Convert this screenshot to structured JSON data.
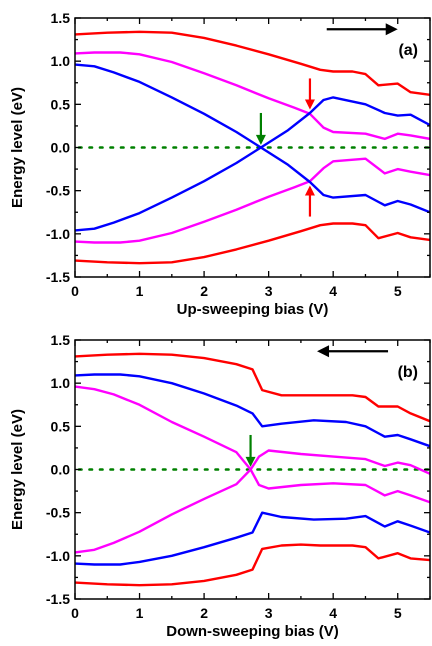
{
  "chart_data": [
    {
      "type": "line",
      "panel_label": "(a)",
      "xlabel": "Up-sweeping bias (V)",
      "ylabel": "Energy level  (eV)",
      "xlim": [
        0,
        5.5
      ],
      "ylim": [
        -1.5,
        1.5
      ],
      "xticks": [
        0,
        1,
        2,
        3,
        4,
        5
      ],
      "yticks": [
        -1.5,
        -1.0,
        -0.5,
        0.0,
        0.5,
        1.0,
        1.5
      ],
      "xtick_labels": [
        "0",
        "1",
        "2",
        "3",
        "4",
        "5"
      ],
      "ytick_labels": [
        "-1.5",
        "-1.0",
        "-0.5",
        "0.0",
        "0.5",
        "1.0",
        "1.5"
      ],
      "grid": false,
      "sweep_arrow": {
        "color": "#000000",
        "direction": "right",
        "x_from": 3.9,
        "x_to": 5.0,
        "y": 1.37
      },
      "zero_line": {
        "y": 0.0,
        "color": "#008000",
        "style": "dotted"
      },
      "markers": [
        {
          "color": "#008000",
          "x": 2.88,
          "y_tip": 0.03,
          "y_tail": 0.4,
          "direction": "down"
        },
        {
          "color": "#ff0000",
          "x": 3.64,
          "y_tip": 0.44,
          "y_tail": 0.8,
          "direction": "down"
        },
        {
          "color": "#ff0000",
          "x": 3.64,
          "y_tip": -0.44,
          "y_tail": -0.8,
          "direction": "up"
        }
      ],
      "series": [
        {
          "color": "#ff0000",
          "x": [
            0,
            0.5,
            1,
            1.5,
            2,
            2.5,
            3,
            3.5,
            3.8,
            4.0,
            4.3,
            4.5,
            4.7,
            5.0,
            5.2,
            5.5
          ],
          "y": [
            1.31,
            1.33,
            1.34,
            1.33,
            1.27,
            1.18,
            1.08,
            0.97,
            0.9,
            0.88,
            0.88,
            0.85,
            0.72,
            0.74,
            0.64,
            0.61
          ]
        },
        {
          "color": "#ff0000",
          "x": [
            0,
            0.5,
            1,
            1.5,
            2,
            2.5,
            3,
            3.5,
            3.8,
            4.0,
            4.3,
            4.5,
            4.7,
            5.0,
            5.2,
            5.5
          ],
          "y": [
            -1.31,
            -1.33,
            -1.34,
            -1.33,
            -1.27,
            -1.18,
            -1.08,
            -0.97,
            -0.9,
            -0.88,
            -0.88,
            -0.9,
            -1.05,
            -0.99,
            -1.04,
            -1.07
          ]
        },
        {
          "color": "#ff00ff",
          "x": [
            0,
            0.3,
            0.7,
            1.0,
            1.5,
            2.0,
            2.5,
            3.0,
            3.4,
            3.64,
            3.85,
            4.0,
            4.5,
            4.8,
            5.0,
            5.2,
            5.5
          ],
          "y": [
            1.09,
            1.1,
            1.1,
            1.08,
            0.99,
            0.86,
            0.72,
            0.57,
            0.46,
            0.39,
            0.23,
            0.18,
            0.16,
            0.1,
            0.16,
            0.14,
            0.1
          ]
        },
        {
          "color": "#ff00ff",
          "x": [
            0,
            0.3,
            0.7,
            1.0,
            1.5,
            2.0,
            2.5,
            3.0,
            3.4,
            3.64,
            3.85,
            4.0,
            4.5,
            4.8,
            5.0,
            5.2,
            5.5
          ],
          "y": [
            -1.09,
            -1.1,
            -1.1,
            -1.08,
            -0.99,
            -0.86,
            -0.72,
            -0.57,
            -0.46,
            -0.39,
            -0.24,
            -0.16,
            -0.13,
            -0.3,
            -0.25,
            -0.28,
            -0.32
          ]
        },
        {
          "color": "#0000ff",
          "x": [
            0,
            0.3,
            0.6,
            1.0,
            1.5,
            2.0,
            2.5,
            2.88,
            3.3,
            3.64,
            3.85,
            4.0,
            4.5,
            4.8,
            5.0,
            5.2,
            5.5
          ],
          "y": [
            0.96,
            0.94,
            0.87,
            0.76,
            0.58,
            0.39,
            0.18,
            0.0,
            0.2,
            0.4,
            0.55,
            0.58,
            0.5,
            0.4,
            0.37,
            0.38,
            0.26
          ]
        },
        {
          "color": "#0000ff",
          "x": [
            0,
            0.3,
            0.6,
            1.0,
            1.5,
            2.0,
            2.5,
            2.88,
            3.3,
            3.64,
            3.85,
            4.0,
            4.5,
            4.8,
            5.0,
            5.2,
            5.5
          ],
          "y": [
            -0.96,
            -0.94,
            -0.87,
            -0.76,
            -0.58,
            -0.39,
            -0.18,
            0.0,
            -0.2,
            -0.4,
            -0.55,
            -0.58,
            -0.55,
            -0.67,
            -0.62,
            -0.66,
            -0.75
          ]
        }
      ]
    },
    {
      "type": "line",
      "panel_label": "(b)",
      "xlabel": "Down-sweeping bias (V)",
      "ylabel": "Energy level  (eV)",
      "xlim": [
        0,
        5.5
      ],
      "ylim": [
        -1.5,
        1.5
      ],
      "xticks": [
        0,
        1,
        2,
        3,
        4,
        5
      ],
      "yticks": [
        -1.5,
        -1.0,
        -0.5,
        0.0,
        0.5,
        1.0,
        1.5
      ],
      "xtick_labels": [
        "0",
        "1",
        "2",
        "3",
        "4",
        "5"
      ],
      "ytick_labels": [
        "-1.5",
        "-1.0",
        "-0.5",
        "0.0",
        "0.5",
        "1.0",
        "1.5"
      ],
      "grid": false,
      "sweep_arrow": {
        "color": "#000000",
        "direction": "left",
        "x_from": 4.85,
        "x_to": 3.75,
        "y": 1.37
      },
      "zero_line": {
        "y": 0.0,
        "color": "#008000",
        "style": "dotted"
      },
      "markers": [
        {
          "color": "#008000",
          "x": 2.72,
          "y_tip": 0.03,
          "y_tail": 0.4,
          "direction": "down"
        }
      ],
      "series": [
        {
          "color": "#ff0000",
          "x": [
            0,
            0.5,
            1,
            1.5,
            2,
            2.5,
            2.75,
            2.9,
            3.2,
            3.5,
            3.8,
            4.3,
            4.5,
            4.7,
            5.0,
            5.2,
            5.5
          ],
          "y": [
            1.31,
            1.33,
            1.34,
            1.33,
            1.29,
            1.22,
            1.16,
            0.92,
            0.86,
            0.86,
            0.86,
            0.86,
            0.84,
            0.73,
            0.73,
            0.65,
            0.56
          ]
        },
        {
          "color": "#ff0000",
          "x": [
            0,
            0.5,
            1,
            1.5,
            2,
            2.5,
            2.75,
            2.9,
            3.2,
            3.5,
            3.8,
            4.3,
            4.5,
            4.7,
            5.0,
            5.2,
            5.5
          ],
          "y": [
            -1.31,
            -1.33,
            -1.34,
            -1.33,
            -1.29,
            -1.22,
            -1.16,
            -0.92,
            -0.88,
            -0.87,
            -0.88,
            -0.88,
            -0.9,
            -1.03,
            -0.97,
            -1.03,
            -1.05
          ]
        },
        {
          "color": "#0000ff",
          "x": [
            0,
            0.3,
            0.7,
            1.0,
            1.5,
            2.0,
            2.5,
            2.75,
            2.9,
            3.2,
            3.7,
            4.2,
            4.5,
            4.8,
            5.0,
            5.2,
            5.5
          ],
          "y": [
            1.09,
            1.1,
            1.1,
            1.08,
            1.0,
            0.88,
            0.74,
            0.65,
            0.5,
            0.53,
            0.57,
            0.55,
            0.5,
            0.38,
            0.4,
            0.35,
            0.27
          ]
        },
        {
          "color": "#0000ff",
          "x": [
            0,
            0.3,
            0.7,
            1.0,
            1.5,
            2.0,
            2.5,
            2.75,
            2.9,
            3.2,
            3.7,
            4.2,
            4.5,
            4.8,
            5.0,
            5.2,
            5.5
          ],
          "y": [
            -1.09,
            -1.1,
            -1.1,
            -1.07,
            -1.0,
            -0.9,
            -0.79,
            -0.73,
            -0.5,
            -0.55,
            -0.58,
            -0.57,
            -0.54,
            -0.66,
            -0.6,
            -0.65,
            -0.73
          ]
        },
        {
          "color": "#ff00ff",
          "x": [
            0,
            0.3,
            0.6,
            1.0,
            1.5,
            2.0,
            2.5,
            2.72,
            2.85,
            3.0,
            3.5,
            4.0,
            4.5,
            4.8,
            5.0,
            5.2,
            5.5
          ],
          "y": [
            0.96,
            0.93,
            0.87,
            0.75,
            0.55,
            0.38,
            0.2,
            0.0,
            0.15,
            0.22,
            0.18,
            0.15,
            0.12,
            0.04,
            0.08,
            0.05,
            -0.05
          ]
        },
        {
          "color": "#ff00ff",
          "x": [
            0,
            0.3,
            0.6,
            1.0,
            1.5,
            2.0,
            2.5,
            2.72,
            2.85,
            3.0,
            3.5,
            4.0,
            4.5,
            4.8,
            5.0,
            5.2,
            5.5
          ],
          "y": [
            -0.96,
            -0.93,
            -0.85,
            -0.72,
            -0.52,
            -0.34,
            -0.17,
            0.0,
            -0.18,
            -0.22,
            -0.18,
            -0.16,
            -0.18,
            -0.3,
            -0.25,
            -0.3,
            -0.38
          ]
        }
      ]
    }
  ]
}
